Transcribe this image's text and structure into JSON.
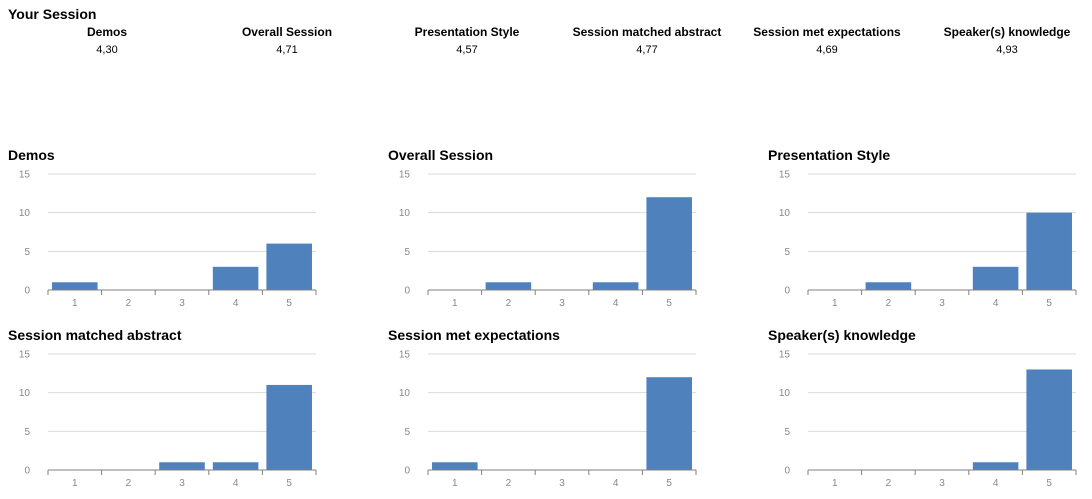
{
  "summary": {
    "title": "Your Session",
    "metrics": [
      {
        "name": "Demos",
        "value": "4,30"
      },
      {
        "name": "Overall Session",
        "value": "4,71"
      },
      {
        "name": "Presentation Style",
        "value": "4,57"
      },
      {
        "name": "Session matched abstract",
        "value": "4,77"
      },
      {
        "name": "Session met expectations",
        "value": "4,69"
      },
      {
        "name": "Speaker(s) knowledge",
        "value": "4,93"
      }
    ]
  },
  "colors": {
    "bar": "#4f81bd",
    "gridline": "#d9d9d9",
    "axis": "#808080",
    "tick_text": "#888888"
  },
  "chart_data": [
    {
      "type": "bar",
      "title": "Demos",
      "categories": [
        "1",
        "2",
        "3",
        "4",
        "5"
      ],
      "values": [
        1,
        0,
        0,
        3,
        6
      ],
      "ylim": [
        0,
        15
      ],
      "yticks": [
        0,
        5,
        10,
        15
      ],
      "grid": true,
      "legend": "none"
    },
    {
      "type": "bar",
      "title": "Overall Session",
      "categories": [
        "1",
        "2",
        "3",
        "4",
        "5"
      ],
      "values": [
        0,
        1,
        0,
        1,
        12
      ],
      "ylim": [
        0,
        15
      ],
      "yticks": [
        0,
        5,
        10,
        15
      ],
      "grid": true,
      "legend": "none"
    },
    {
      "type": "bar",
      "title": "Presentation Style",
      "categories": [
        "1",
        "2",
        "3",
        "4",
        "5"
      ],
      "values": [
        0,
        1,
        0,
        3,
        10
      ],
      "ylim": [
        0,
        15
      ],
      "yticks": [
        0,
        5,
        10,
        15
      ],
      "grid": true,
      "legend": "none"
    },
    {
      "type": "bar",
      "title": "Session matched abstract",
      "categories": [
        "1",
        "2",
        "3",
        "4",
        "5"
      ],
      "values": [
        0,
        0,
        1,
        1,
        11
      ],
      "ylim": [
        0,
        15
      ],
      "yticks": [
        0,
        5,
        10,
        15
      ],
      "grid": true,
      "legend": "none"
    },
    {
      "type": "bar",
      "title": "Session met expectations",
      "categories": [
        "1",
        "2",
        "3",
        "4",
        "5"
      ],
      "values": [
        1,
        0,
        0,
        0,
        12
      ],
      "ylim": [
        0,
        15
      ],
      "yticks": [
        0,
        5,
        10,
        15
      ],
      "grid": true,
      "legend": "none"
    },
    {
      "type": "bar",
      "title": "Speaker(s) knowledge",
      "categories": [
        "1",
        "2",
        "3",
        "4",
        "5"
      ],
      "values": [
        0,
        0,
        0,
        1,
        13
      ],
      "ylim": [
        0,
        15
      ],
      "yticks": [
        0,
        5,
        10,
        15
      ],
      "grid": true,
      "legend": "none"
    }
  ]
}
